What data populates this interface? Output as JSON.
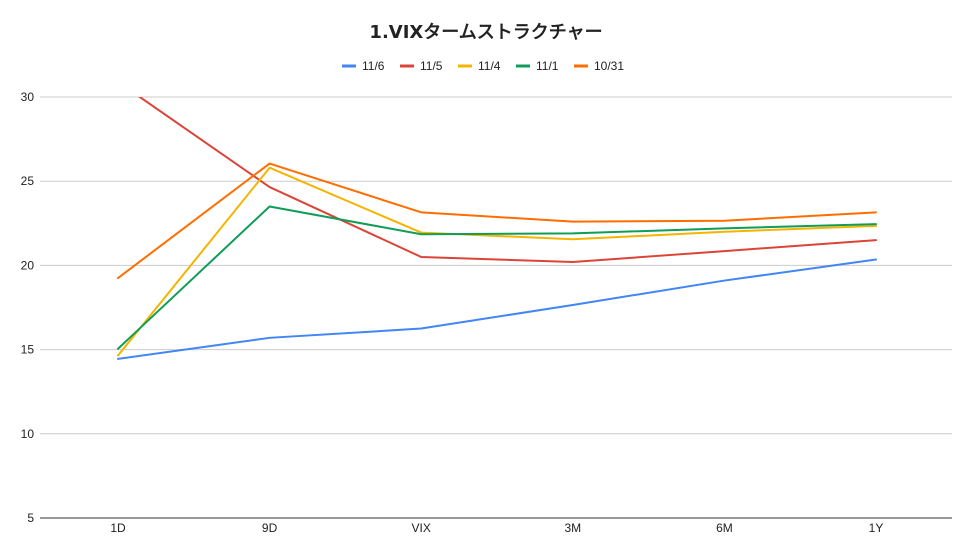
{
  "chart_data": {
    "type": "line",
    "title": "1.VIXタームストラクチャー",
    "xlabel": "",
    "ylabel": "",
    "categories": [
      "1D",
      "9D",
      "VIX",
      "3M",
      "6M",
      "1Y"
    ],
    "ylim": [
      5,
      30
    ],
    "yticks": [
      "5",
      "10",
      "15",
      "20",
      "25",
      "30"
    ],
    "grid": true,
    "legend_position": "top",
    "series": [
      {
        "name": "11/6",
        "color": "#4285f4",
        "values": [
          14.45,
          15.7,
          16.25,
          17.65,
          19.1,
          20.35
        ]
      },
      {
        "name": "11/5",
        "color": "#db4437",
        "values": [
          30.9,
          24.65,
          20.5,
          20.2,
          20.85,
          21.5
        ]
      },
      {
        "name": "11/4",
        "color": "#f4b400",
        "values": [
          14.65,
          25.8,
          21.95,
          21.55,
          22.0,
          22.35
        ]
      },
      {
        "name": "11/1",
        "color": "#0f9d58",
        "values": [
          15.05,
          23.5,
          21.85,
          21.9,
          22.2,
          22.45
        ]
      },
      {
        "name": "10/31",
        "color": "#ff6d00",
        "values": [
          19.25,
          26.05,
          23.15,
          22.6,
          22.65,
          23.15
        ]
      }
    ]
  }
}
